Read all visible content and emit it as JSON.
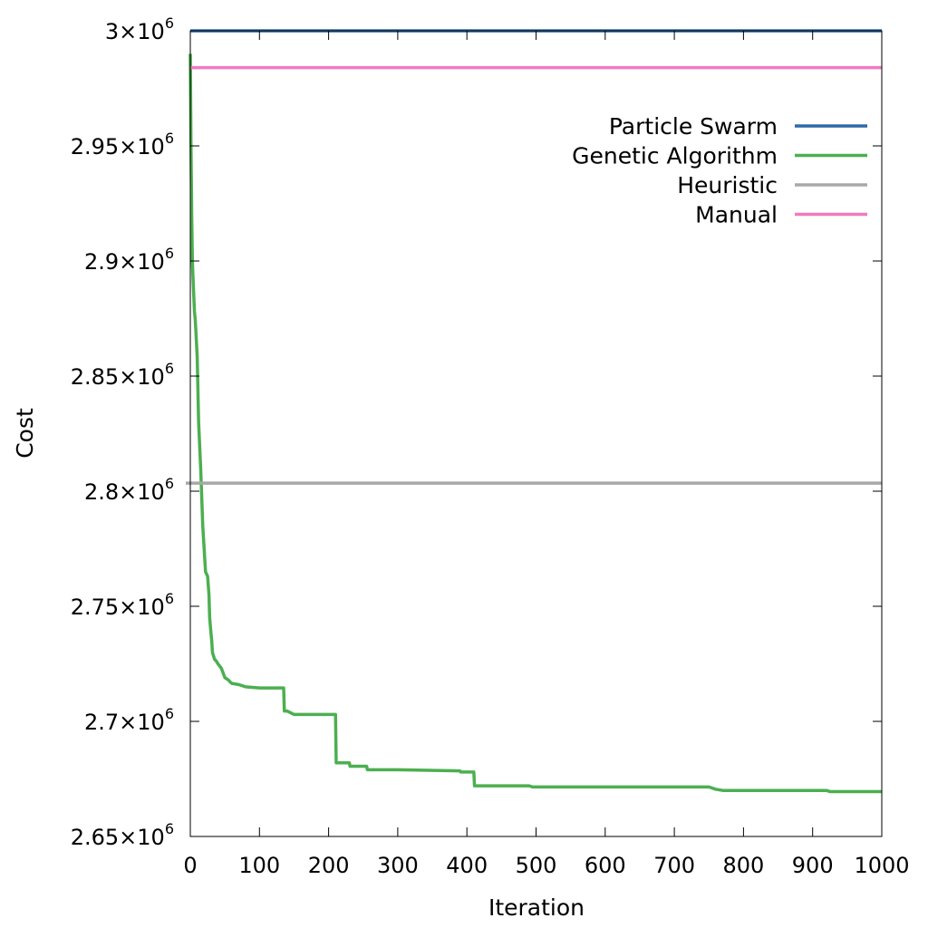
{
  "chart_data": {
    "type": "line",
    "title": "",
    "xlabel": "Iteration",
    "ylabel": "Cost",
    "xlim": [
      0,
      1000
    ],
    "ylim": [
      2650000,
      3000000
    ],
    "grid": false,
    "legend_position": "top-right",
    "x_ticks": [
      {
        "value": 0,
        "label": "0"
      },
      {
        "value": 100,
        "label": "100"
      },
      {
        "value": 200,
        "label": "200"
      },
      {
        "value": 300,
        "label": "300"
      },
      {
        "value": 400,
        "label": "400"
      },
      {
        "value": 500,
        "label": "500"
      },
      {
        "value": 600,
        "label": "600"
      },
      {
        "value": 700,
        "label": "700"
      },
      {
        "value": 800,
        "label": "800"
      },
      {
        "value": 900,
        "label": "900"
      },
      {
        "value": 1000,
        "label": "1000"
      }
    ],
    "y_ticks": [
      {
        "value": 2650000,
        "mantissa": "2.65",
        "exponent": "6"
      },
      {
        "value": 2700000,
        "mantissa": "2.7",
        "exponent": "6"
      },
      {
        "value": 2750000,
        "mantissa": "2.75",
        "exponent": "6"
      },
      {
        "value": 2800000,
        "mantissa": "2.8",
        "exponent": "6"
      },
      {
        "value": 2850000,
        "mantissa": "2.85",
        "exponent": "6"
      },
      {
        "value": 2900000,
        "mantissa": "2.9",
        "exponent": "6"
      },
      {
        "value": 2950000,
        "mantissa": "2.95",
        "exponent": "6"
      },
      {
        "value": 3000000,
        "mantissa": "3",
        "exponent": "6"
      }
    ],
    "series": [
      {
        "name": "Particle Swarm",
        "color": "#2e6aa6",
        "x": [
          0,
          1000
        ],
        "y": [
          3000000,
          3000000
        ]
      },
      {
        "name": "Genetic Algorithm",
        "color": "#4caf50",
        "x": [
          0,
          1,
          2,
          3,
          4,
          5,
          6,
          7,
          8,
          10,
          12,
          15,
          18,
          20,
          22,
          25,
          27,
          28,
          30,
          31,
          32,
          33,
          35,
          38,
          40,
          45,
          50,
          55,
          58,
          60,
          70,
          80,
          100,
          130,
          135,
          136,
          140,
          150,
          170,
          200,
          208,
          210,
          211,
          230,
          231,
          250,
          255,
          256,
          300,
          390,
          391,
          410,
          411,
          490,
          495,
          750,
          760,
          770,
          800,
          920,
          925,
          1000
        ],
        "y": [
          2990000,
          2950000,
          2920000,
          2900000,
          2892000,
          2885000,
          2878000,
          2875000,
          2870000,
          2858000,
          2830000,
          2810000,
          2785000,
          2775000,
          2765000,
          2763000,
          2755000,
          2745000,
          2738000,
          2735000,
          2730000,
          2729000,
          2727000,
          2726000,
          2725000,
          2723000,
          2719000,
          2718000,
          2717000,
          2716500,
          2716000,
          2715000,
          2714500,
          2714500,
          2714500,
          2704500,
          2704500,
          2703000,
          2703000,
          2703000,
          2703000,
          2703000,
          2682000,
          2682000,
          2680500,
          2680500,
          2680500,
          2679000,
          2679000,
          2678500,
          2678000,
          2678000,
          2672000,
          2672000,
          2671500,
          2671500,
          2670500,
          2670000,
          2670000,
          2670000,
          2669500,
          2669500
        ]
      },
      {
        "name": "Heuristic",
        "color": "#a8a8a8",
        "x": [
          0,
          1000
        ],
        "y": [
          2803500,
          2803500
        ]
      },
      {
        "name": "Manual",
        "color": "#f07cbf",
        "x": [
          0,
          1000
        ],
        "y": [
          2984000,
          2984000
        ]
      }
    ]
  }
}
